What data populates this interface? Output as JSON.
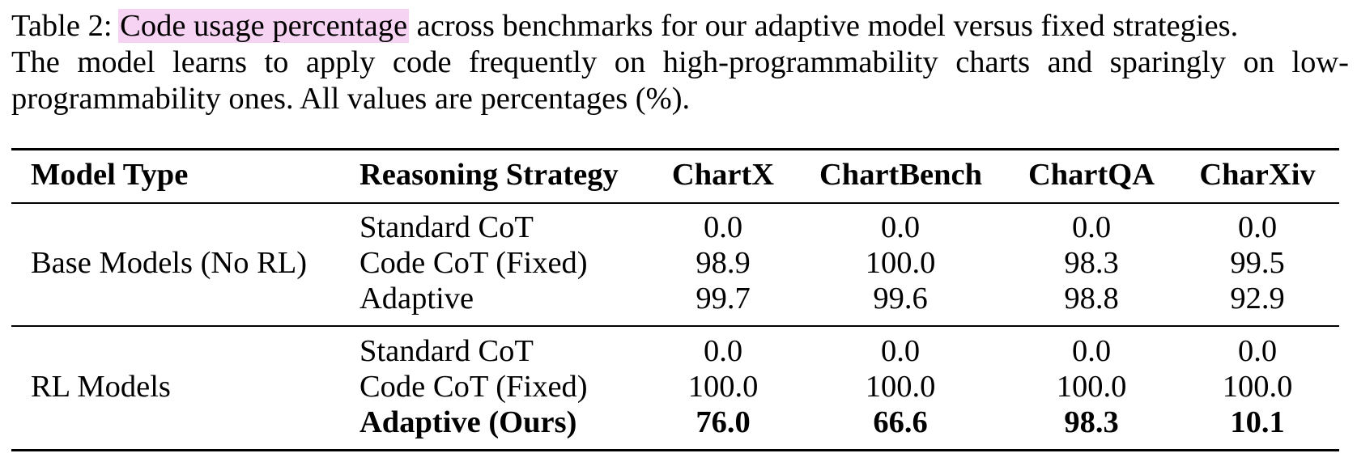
{
  "caption": {
    "label": "Table 2:",
    "highlighted": "Code usage percentage",
    "rest_line1": "across benchmarks for our adaptive model versus fixed strategies.",
    "line2": "The model learns to apply code frequently on high-programmability charts and sparingly on low-",
    "line3": "programmability ones. All values are percentages (%).",
    "highlight_color": "#f7d3f3"
  },
  "table": {
    "headers": {
      "model_type": "Model Type",
      "reasoning_strategy": "Reasoning Strategy",
      "chartx": "ChartX",
      "chartbench": "ChartBench",
      "chartqa": "ChartQA",
      "charxiv": "CharXiv"
    },
    "groups": [
      {
        "model_type": "Base Models (No RL)",
        "rows": [
          {
            "strategy": "Standard CoT",
            "chartx": "0.0",
            "chartbench": "0.0",
            "chartqa": "0.0",
            "charxiv": "0.0"
          },
          {
            "strategy": "Code CoT (Fixed)",
            "chartx": "98.9",
            "chartbench": "100.0",
            "chartqa": "98.3",
            "charxiv": "99.5"
          },
          {
            "strategy": "Adaptive",
            "chartx": "99.7",
            "chartbench": "99.6",
            "chartqa": "98.8",
            "charxiv": "92.9"
          }
        ]
      },
      {
        "model_type": "RL Models",
        "rows": [
          {
            "strategy": "Standard CoT",
            "chartx": "0.0",
            "chartbench": "0.0",
            "chartqa": "0.0",
            "charxiv": "0.0"
          },
          {
            "strategy": "Code CoT (Fixed)",
            "chartx": "100.0",
            "chartbench": "100.0",
            "chartqa": "100.0",
            "charxiv": "100.0"
          },
          {
            "strategy": "Adaptive (Ours)",
            "chartx": "76.0",
            "chartbench": "66.6",
            "chartqa": "98.3",
            "charxiv": "10.1",
            "bold": true
          }
        ]
      }
    ]
  }
}
